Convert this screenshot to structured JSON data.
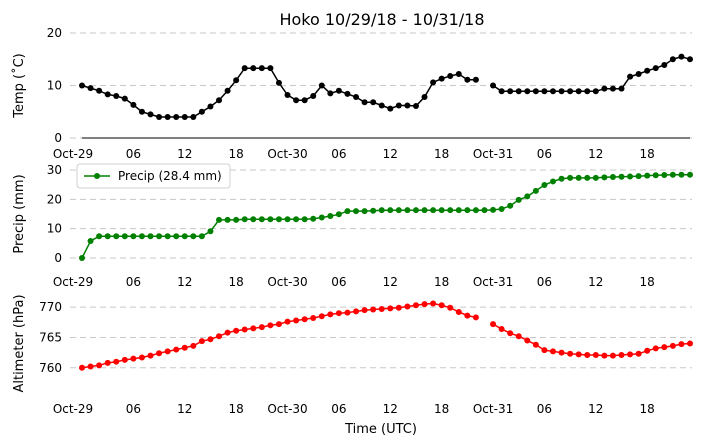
{
  "chart_data": {
    "type": "line",
    "title": "Hoko 10/29/18 - 10/31/18",
    "xlabel": "Time (UTC)",
    "x_tick_labels": [
      "Oct-29",
      "06",
      "12",
      "18",
      "Oct-30",
      "06",
      "12",
      "18",
      "Oct-31",
      "06",
      "12",
      "18"
    ],
    "x_tick_hours": [
      0,
      6,
      12,
      18,
      24,
      30,
      36,
      42,
      48,
      54,
      60,
      66
    ],
    "x_start": "2018-10-29 00:00 UTC",
    "x_end": "2018-10-31 23:00 UTC",
    "grid": "horizontal dashed",
    "panels": [
      {
        "ylabel": "Temp (˚C)",
        "ylim": [
          0,
          20
        ],
        "yticks": [
          0,
          10,
          20
        ],
        "color": "#000000",
        "series": [
          {
            "x_hours": [
              0,
              1,
              2,
              3,
              4,
              5,
              6,
              7,
              8,
              9,
              10,
              11,
              12,
              13,
              14,
              15,
              16,
              17,
              18,
              19,
              20,
              21,
              22,
              23,
              24,
              25,
              26,
              27,
              28,
              29,
              30,
              31,
              32,
              33,
              34,
              35,
              36,
              37,
              38,
              39,
              40,
              41,
              42,
              43,
              44,
              45,
              46,
              47,
              48,
              49,
              50,
              51,
              52,
              53,
              54,
              55,
              56,
              57,
              58,
              59,
              60,
              61,
              62,
              63,
              64,
              65,
              66,
              67,
              68,
              69,
              70,
              71
            ],
            "values": [
              10,
              9.5,
              9,
              8.3,
              8,
              7.5,
              6.3,
              5,
              4.5,
              4,
              4,
              4,
              4,
              4,
              5,
              6,
              7.2,
              9,
              11,
              13.3,
              13.3,
              13.3,
              13.3,
              10.5,
              8.2,
              7.2,
              7.2,
              8,
              10,
              8.5,
              9,
              8.4,
              7.8,
              6.8,
              6.8,
              6.2,
              5.6,
              6.2,
              6.2,
              6.1,
              7.8,
              10.6,
              11.3,
              11.8,
              12.2,
              11.1,
              11.1,
              null,
              10,
              8.9,
              8.9,
              8.9,
              8.9,
              8.9,
              8.9,
              8.9,
              8.9,
              8.9,
              8.9,
              8.9,
              8.9,
              9.4,
              9.4,
              9.4,
              11.7,
              12.2,
              12.8,
              13.3,
              13.9,
              15,
              15.5,
              15
            ]
          }
        ]
      },
      {
        "ylabel": "Precip (mm)",
        "ylim": [
          0,
          30
        ],
        "yticks": [
          0,
          10,
          20,
          30
        ],
        "color": "#008000",
        "legend": "Precip (28.4 mm)",
        "legend_position": "upper-left",
        "series": [
          {
            "name": "Precip (28.4 mm)",
            "x_hours": [
              0,
              1,
              2,
              3,
              4,
              5,
              6,
              7,
              8,
              9,
              10,
              11,
              12,
              13,
              14,
              15,
              16,
              17,
              18,
              19,
              20,
              21,
              22,
              23,
              24,
              25,
              26,
              27,
              28,
              29,
              30,
              31,
              32,
              33,
              34,
              35,
              36,
              37,
              38,
              39,
              40,
              41,
              42,
              43,
              44,
              45,
              46,
              47,
              48,
              49,
              50,
              51,
              52,
              53,
              54,
              55,
              56,
              57,
              58,
              59,
              60,
              61,
              62,
              63,
              64,
              65,
              66,
              67,
              68,
              69,
              70,
              71
            ],
            "values": [
              0,
              5.8,
              7.4,
              7.4,
              7.4,
              7.4,
              7.4,
              7.4,
              7.4,
              7.4,
              7.4,
              7.4,
              7.4,
              7.4,
              7.4,
              9.1,
              13,
              13,
              13,
              13.2,
              13.2,
              13.2,
              13.2,
              13.2,
              13.2,
              13.2,
              13.2,
              13.4,
              13.8,
              14.3,
              14.9,
              16,
              16,
              16,
              16.1,
              16.3,
              16.3,
              16.3,
              16.3,
              16.3,
              16.3,
              16.3,
              16.3,
              16.3,
              16.3,
              16.3,
              16.3,
              16.3,
              16.4,
              16.7,
              17.8,
              19.8,
              21,
              22.9,
              24.9,
              26.1,
              27,
              27.3,
              27.3,
              27.3,
              27.3,
              27.5,
              27.6,
              27.7,
              27.8,
              27.9,
              28.1,
              28.2,
              28.3,
              28.4,
              28.4,
              28.4
            ]
          }
        ]
      },
      {
        "ylabel": "Altimeter (hPa)",
        "ylim": [
          756,
          772
        ],
        "yticks": [
          760,
          765,
          770
        ],
        "color": "#ff0000",
        "series": [
          {
            "x_hours": [
              0,
              1,
              2,
              3,
              4,
              5,
              6,
              7,
              8,
              9,
              10,
              11,
              12,
              13,
              14,
              15,
              16,
              17,
              18,
              19,
              20,
              21,
              22,
              23,
              24,
              25,
              26,
              27,
              28,
              29,
              30,
              31,
              32,
              33,
              34,
              35,
              36,
              37,
              38,
              39,
              40,
              41,
              42,
              43,
              44,
              45,
              46,
              47,
              48,
              49,
              50,
              51,
              52,
              53,
              54,
              55,
              56,
              57,
              58,
              59,
              60,
              61,
              62,
              63,
              64,
              65,
              66,
              67,
              68,
              69,
              70,
              71
            ],
            "values": [
              760,
              760.2,
              760.4,
              760.8,
              761,
              761.3,
              761.5,
              761.7,
              762,
              762.4,
              762.7,
              763,
              763.3,
              763.6,
              764.4,
              764.7,
              765.2,
              765.8,
              766.1,
              766.3,
              766.5,
              766.7,
              767,
              767.2,
              767.6,
              767.8,
              768,
              768.2,
              768.5,
              768.8,
              769,
              769.1,
              769.3,
              769.5,
              769.6,
              769.7,
              769.8,
              769.9,
              770.1,
              770.3,
              770.5,
              770.6,
              770.3,
              769.9,
              769.2,
              768.6,
              768.3,
              null,
              767.2,
              766.4,
              765.7,
              765.2,
              764.5,
              763.8,
              762.9,
              762.7,
              762.5,
              762.3,
              762.2,
              762.1,
              762.1,
              762,
              762,
              762.1,
              762.2,
              762.3,
              762.8,
              763.2,
              763.4,
              763.6,
              763.9,
              764
            ]
          }
        ]
      }
    ]
  }
}
